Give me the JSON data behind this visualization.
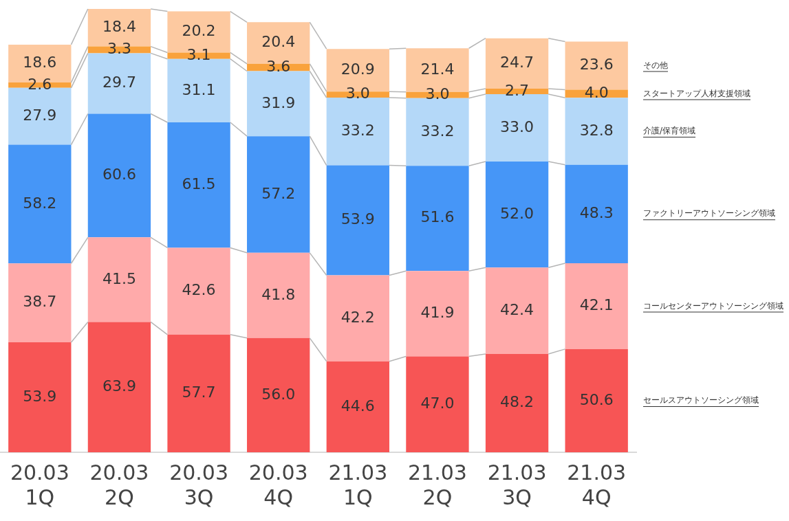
{
  "chart_data": {
    "type": "bar",
    "stacked": true,
    "legend": false,
    "grid": false,
    "tick_labels": "x",
    "categories": [
      "20.03\n1Q",
      "20.03\n2Q",
      "20.03\n3Q",
      "20.03\n4Q",
      "21.03\n1Q",
      "21.03\n2Q",
      "21.03\n3Q",
      "21.03\n4Q"
    ],
    "series": [
      {
        "name": "セールスアウトソーシング領域",
        "color": "#f75555",
        "values": [
          53.9,
          63.9,
          57.7,
          56.0,
          44.6,
          47.0,
          48.2,
          50.6
        ],
        "value_labels": [
          "53.9",
          "63.9",
          "57.7",
          "56.0",
          "44.6",
          "47.0",
          "48.2",
          "50.6"
        ]
      },
      {
        "name": "コールセンターアウトソーシング領域",
        "color": "#ffaaaa",
        "values": [
          38.7,
          41.5,
          42.6,
          41.8,
          42.2,
          41.9,
          42.4,
          42.1
        ],
        "value_labels": [
          "38.7",
          "41.5",
          "42.6",
          "41.8",
          "42.2",
          "41.9",
          "42.4",
          "42.1"
        ]
      },
      {
        "name": "ファクトリーアウトソーシング領域",
        "color": "#4696f7",
        "values": [
          58.2,
          60.6,
          61.5,
          57.2,
          53.9,
          51.6,
          52.0,
          48.3
        ],
        "value_labels": [
          "58.2",
          "60.6",
          "61.5",
          "57.2",
          "53.9",
          "51.6",
          "52.0",
          "48.3"
        ]
      },
      {
        "name": "介護/保育領域",
        "color": "#b4d8f8",
        "values": [
          27.9,
          29.7,
          31.1,
          31.9,
          33.2,
          33.2,
          33.0,
          32.8
        ],
        "value_labels": [
          "27.9",
          "29.7",
          "31.1",
          "31.9",
          "33.2",
          "33.2",
          "33.0",
          "32.8"
        ]
      },
      {
        "name": "スタートアップ人材支援領域",
        "color": "#f9a23c",
        "values": [
          2.6,
          3.3,
          3.1,
          3.6,
          3.0,
          3.0,
          2.7,
          4.0
        ],
        "value_labels": [
          "2.6",
          "3.3",
          "3.1",
          "3.6",
          "3.0",
          "3.0",
          "2.7",
          "4.0"
        ]
      },
      {
        "name": "その他",
        "color": "#fdc9a0",
        "values": [
          18.6,
          18.4,
          20.2,
          20.4,
          20.9,
          21.4,
          24.7,
          23.6
        ],
        "value_labels": [
          "18.6",
          "18.4",
          "20.2",
          "20.4",
          "20.9",
          "21.4",
          "24.7",
          "23.6"
        ]
      }
    ]
  }
}
